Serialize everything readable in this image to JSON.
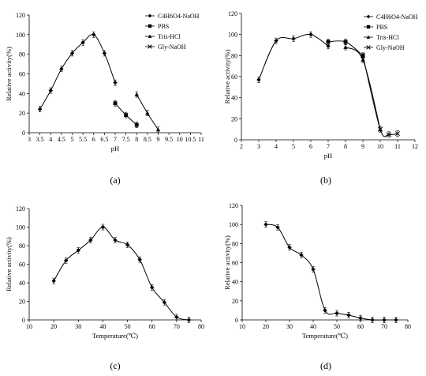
{
  "chart_data": [
    {
      "id": "a",
      "type": "line",
      "caption": "(a)",
      "xlabel": "pH",
      "ylabel": "Relative activity(%)",
      "xlim": [
        3,
        11
      ],
      "ylim": [
        0,
        120
      ],
      "xticks": [
        "3",
        "3.5",
        "4",
        "4.5",
        "5",
        "5.5",
        "6",
        "6.5",
        "7",
        "7.5",
        "8",
        "8.5",
        "9",
        "9.5",
        "10",
        "10.5",
        "11"
      ],
      "yticks": [
        "0",
        "20",
        "40",
        "60",
        "80",
        "100",
        "120"
      ],
      "legend": [
        "C4H6O4-NaOH",
        "PBS",
        "Tris-HCl",
        "Gly-NaOH"
      ],
      "series": [
        {
          "name": "C4H6O4-NaOH",
          "marker": "diamond",
          "x": [
            3.5,
            4,
            4.5,
            5,
            5.5,
            6,
            6.5,
            7
          ],
          "y": [
            24,
            43,
            65,
            81,
            92,
            100,
            81,
            51
          ]
        },
        {
          "name": "PBS",
          "marker": "square",
          "x": [
            7,
            7.5,
            8
          ],
          "y": [
            30,
            18,
            8
          ]
        },
        {
          "name": "Tris-HCl",
          "marker": "triangle",
          "x": [
            8,
            8.5,
            9
          ],
          "y": [
            39,
            20,
            3
          ]
        }
      ]
    },
    {
      "id": "b",
      "type": "line",
      "caption": "(b)",
      "xlabel": "pH",
      "ylabel": "Relative activity(%)",
      "xlim": [
        2,
        12
      ],
      "ylim": [
        0,
        120
      ],
      "xticks": [
        "2",
        "3",
        "4",
        "5",
        "6",
        "7",
        "8",
        "9",
        "10",
        "11",
        "12"
      ],
      "yticks": [
        "0",
        "20",
        "40",
        "60",
        "80",
        "100",
        "120"
      ],
      "legend": [
        "C4H6O4-NaOH",
        "PBS",
        "Tris-HCl",
        "Gly-NaOH"
      ],
      "series": [
        {
          "name": "C4H6O4-NaOH",
          "marker": "diamond",
          "x": [
            3,
            4,
            5,
            6,
            7
          ],
          "y": [
            57,
            94,
            96,
            100,
            89
          ]
        },
        {
          "name": "PBS",
          "marker": "square",
          "x": [
            7,
            8,
            9
          ],
          "y": [
            93,
            93,
            80
          ]
        },
        {
          "name": "Tris-HCl",
          "marker": "triangle",
          "x": [
            8,
            9,
            10
          ],
          "y": [
            88,
            76,
            10
          ]
        },
        {
          "name": "Gly-NaOH",
          "marker": "x",
          "x": [
            9,
            10,
            10.5,
            11
          ],
          "y": [
            80,
            10,
            5,
            6
          ]
        }
      ]
    },
    {
      "id": "c",
      "type": "line",
      "caption": "(c)",
      "xlabel": "Temperature(℃)",
      "ylabel": "Relative activity(%)",
      "xlim": [
        10,
        80
      ],
      "ylim": [
        0,
        120
      ],
      "xticks": [
        "10",
        "20",
        "30",
        "40",
        "50",
        "60",
        "70",
        "80"
      ],
      "yticks": [
        "0",
        "20",
        "40",
        "60",
        "80",
        "100",
        "120"
      ],
      "series": [
        {
          "name": "",
          "marker": "diamond",
          "x": [
            20,
            25,
            30,
            35,
            40,
            45,
            50,
            55,
            60,
            65,
            70,
            75
          ],
          "y": [
            42,
            64,
            75,
            86,
            100,
            86,
            81,
            65,
            35,
            19,
            3,
            0
          ]
        }
      ]
    },
    {
      "id": "d",
      "type": "line",
      "caption": "(d)",
      "xlabel": "Temperature(℃)",
      "ylabel": "Relative activity(%)",
      "xlim": [
        10,
        80
      ],
      "ylim": [
        0,
        120
      ],
      "xticks": [
        "10",
        "20",
        "30",
        "40",
        "50",
        "60",
        "70",
        "80"
      ],
      "yticks": [
        "0",
        "20",
        "40",
        "60",
        "80",
        "100",
        "120"
      ],
      "series": [
        {
          "name": "",
          "marker": "diamond",
          "x": [
            20,
            25,
            30,
            35,
            40,
            45,
            50,
            55,
            60,
            65,
            70,
            75
          ],
          "y": [
            100,
            97,
            76,
            68,
            53,
            10,
            7,
            5,
            2,
            0,
            0,
            0
          ]
        }
      ]
    }
  ]
}
